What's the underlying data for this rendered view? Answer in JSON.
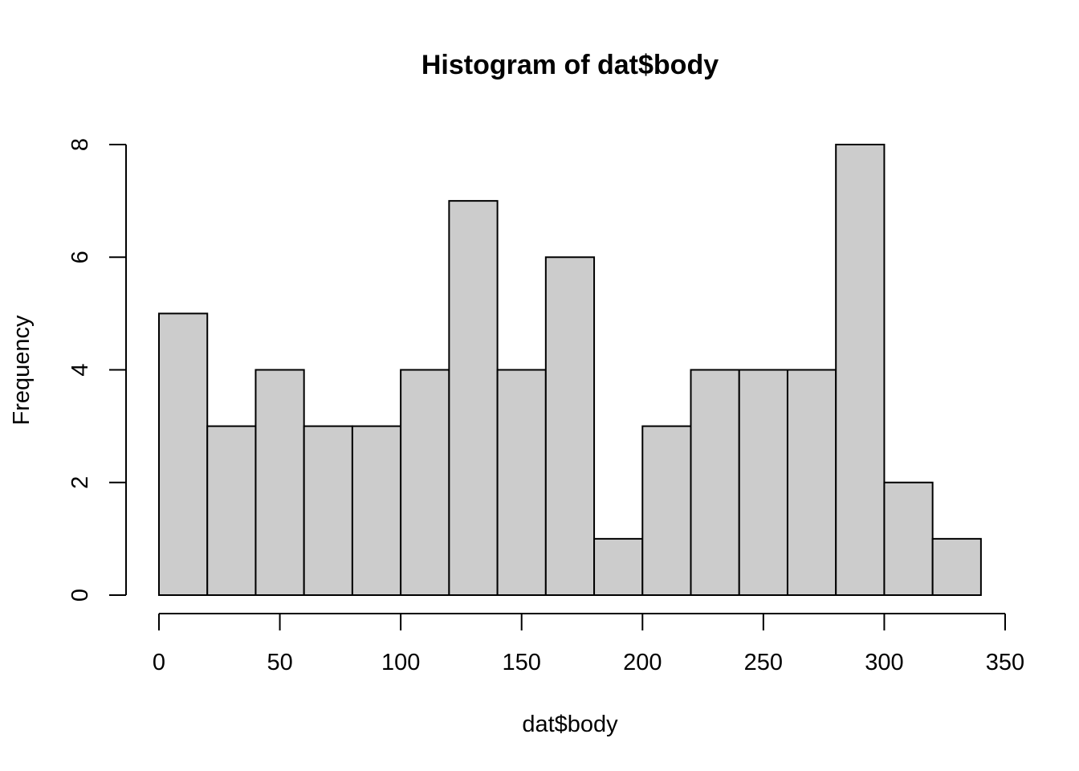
{
  "chart_data": {
    "type": "bar",
    "title": "Histogram of dat$body",
    "xlabel": "dat$body",
    "ylabel": "Frequency",
    "bins": [
      {
        "start": 0,
        "end": 20,
        "count": 5
      },
      {
        "start": 20,
        "end": 40,
        "count": 3
      },
      {
        "start": 40,
        "end": 60,
        "count": 4
      },
      {
        "start": 60,
        "end": 80,
        "count": 3
      },
      {
        "start": 80,
        "end": 100,
        "count": 3
      },
      {
        "start": 100,
        "end": 120,
        "count": 4
      },
      {
        "start": 120,
        "end": 140,
        "count": 7
      },
      {
        "start": 140,
        "end": 160,
        "count": 4
      },
      {
        "start": 160,
        "end": 180,
        "count": 6
      },
      {
        "start": 180,
        "end": 200,
        "count": 1
      },
      {
        "start": 200,
        "end": 220,
        "count": 3
      },
      {
        "start": 220,
        "end": 240,
        "count": 4
      },
      {
        "start": 240,
        "end": 260,
        "count": 4
      },
      {
        "start": 260,
        "end": 280,
        "count": 4
      },
      {
        "start": 280,
        "end": 300,
        "count": 8
      },
      {
        "start": 300,
        "end": 320,
        "count": 2
      },
      {
        "start": 320,
        "end": 340,
        "count": 1
      }
    ],
    "xlim": [
      0,
      350
    ],
    "ylim": [
      0,
      8
    ],
    "xticks": [
      0,
      50,
      100,
      150,
      200,
      250,
      300,
      350
    ],
    "yticks": [
      0,
      2,
      4,
      6,
      8
    ],
    "bar_fill": "#cccccc",
    "bar_stroke": "#000000",
    "grid": false,
    "legend": "none"
  }
}
